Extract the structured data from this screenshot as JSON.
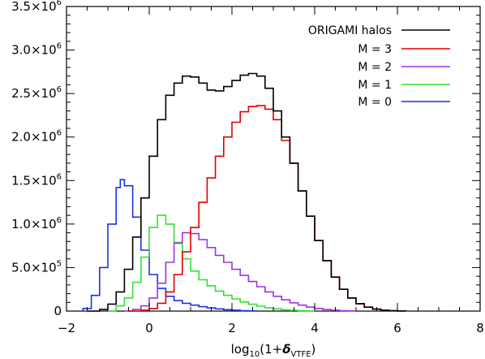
{
  "chart_data": {
    "type": "line",
    "step": true,
    "title": "",
    "xlabel": {
      "prefix": "log",
      "sub": "10",
      "open": "(1+",
      "symbol": "δ",
      "symbol_sub": "VTFE",
      "close": ")"
    },
    "ylabel": "",
    "xlim": [
      -2,
      8
    ],
    "ylim": [
      0,
      3500000
    ],
    "x_ticks": [
      {
        "value": -2,
        "label": "−2"
      },
      {
        "value": 0,
        "label": "0"
      },
      {
        "value": 2,
        "label": "2"
      },
      {
        "value": 4,
        "label": "4"
      },
      {
        "value": 6,
        "label": "6"
      },
      {
        "value": 8,
        "label": "8"
      }
    ],
    "y_ticks": [
      {
        "value": 0,
        "mantissa": "0",
        "exponent": ""
      },
      {
        "value": 500000,
        "mantissa": "5.0×10",
        "exponent": "5"
      },
      {
        "value": 1000000,
        "mantissa": "1.0×10",
        "exponent": "6"
      },
      {
        "value": 1500000,
        "mantissa": "1.5×10",
        "exponent": "6"
      },
      {
        "value": 2000000,
        "mantissa": "2.0×10",
        "exponent": "6"
      },
      {
        "value": 2500000,
        "mantissa": "2.5×10",
        "exponent": "6"
      },
      {
        "value": 3000000,
        "mantissa": "3.0×10",
        "exponent": "6"
      },
      {
        "value": 3500000,
        "mantissa": "3.5×10",
        "exponent": "6"
      }
    ],
    "legend_position": "top-right",
    "series": [
      {
        "name": "ORIGAMI halos",
        "color": "#000000",
        "points": [
          [
            -1.5,
            0
          ],
          [
            -1.2,
            20000
          ],
          [
            -1.0,
            80000
          ],
          [
            -0.8,
            220000
          ],
          [
            -0.6,
            480000
          ],
          [
            -0.4,
            850000
          ],
          [
            -0.2,
            1300000
          ],
          [
            0.0,
            1780000
          ],
          [
            0.2,
            2200000
          ],
          [
            0.4,
            2480000
          ],
          [
            0.6,
            2620000
          ],
          [
            0.8,
            2700000
          ],
          [
            1.0,
            2690000
          ],
          [
            1.2,
            2620000
          ],
          [
            1.4,
            2540000
          ],
          [
            1.6,
            2530000
          ],
          [
            1.8,
            2580000
          ],
          [
            2.0,
            2650000
          ],
          [
            2.2,
            2710000
          ],
          [
            2.4,
            2730000
          ],
          [
            2.6,
            2700000
          ],
          [
            2.8,
            2560000
          ],
          [
            3.0,
            2300000
          ],
          [
            3.2,
            2000000
          ],
          [
            3.4,
            1700000
          ],
          [
            3.6,
            1380000
          ],
          [
            3.8,
            1090000
          ],
          [
            4.0,
            810000
          ],
          [
            4.2,
            580000
          ],
          [
            4.4,
            390000
          ],
          [
            4.6,
            250000
          ],
          [
            4.8,
            150000
          ],
          [
            5.0,
            85000
          ],
          [
            5.2,
            45000
          ],
          [
            5.4,
            22000
          ],
          [
            5.6,
            10000
          ],
          [
            5.8,
            4000
          ],
          [
            6.0,
            1500
          ],
          [
            6.2,
            0
          ]
        ]
      },
      {
        "name": "M = 3",
        "color": "#e00000",
        "points": [
          [
            -0.5,
            0
          ],
          [
            -0.2,
            10000
          ],
          [
            0.0,
            30000
          ],
          [
            0.2,
            90000
          ],
          [
            0.4,
            220000
          ],
          [
            0.6,
            420000
          ],
          [
            0.8,
            680000
          ],
          [
            1.0,
            960000
          ],
          [
            1.2,
            1250000
          ],
          [
            1.4,
            1530000
          ],
          [
            1.6,
            1780000
          ],
          [
            1.8,
            2000000
          ],
          [
            2.0,
            2170000
          ],
          [
            2.2,
            2290000
          ],
          [
            2.4,
            2350000
          ],
          [
            2.6,
            2360000
          ],
          [
            2.7,
            2360000
          ],
          [
            2.8,
            2320000
          ],
          [
            3.0,
            2200000
          ],
          [
            3.2,
            1960000
          ],
          [
            3.4,
            1700000
          ],
          [
            3.6,
            1380000
          ],
          [
            3.8,
            1090000
          ],
          [
            4.0,
            810000
          ],
          [
            4.2,
            580000
          ],
          [
            4.4,
            390000
          ],
          [
            4.6,
            250000
          ],
          [
            4.8,
            150000
          ],
          [
            5.0,
            85000
          ],
          [
            5.2,
            45000
          ],
          [
            5.4,
            22000
          ],
          [
            5.6,
            10000
          ],
          [
            5.8,
            4000
          ],
          [
            6.0,
            1500
          ],
          [
            6.2,
            0
          ]
        ]
      },
      {
        "name": "M = 2",
        "color": "#a033e0",
        "points": [
          [
            -0.6,
            0
          ],
          [
            -0.4,
            20000
          ],
          [
            -0.2,
            60000
          ],
          [
            0.0,
            150000
          ],
          [
            0.2,
            320000
          ],
          [
            0.4,
            560000
          ],
          [
            0.6,
            780000
          ],
          [
            0.8,
            900000
          ],
          [
            1.0,
            890000
          ],
          [
            1.2,
            820000
          ],
          [
            1.4,
            730000
          ],
          [
            1.6,
            640000
          ],
          [
            1.8,
            560000
          ],
          [
            2.0,
            480000
          ],
          [
            2.2,
            410000
          ],
          [
            2.4,
            340000
          ],
          [
            2.6,
            280000
          ],
          [
            2.8,
            220000
          ],
          [
            3.0,
            170000
          ],
          [
            3.2,
            130000
          ],
          [
            3.4,
            95000
          ],
          [
            3.6,
            68000
          ],
          [
            3.8,
            46000
          ],
          [
            4.0,
            30000
          ],
          [
            4.2,
            18000
          ],
          [
            4.4,
            10000
          ],
          [
            4.6,
            5000
          ],
          [
            4.8,
            2000
          ],
          [
            5.0,
            0
          ]
        ]
      },
      {
        "name": "M = 1",
        "color": "#33e033",
        "points": [
          [
            -1.0,
            0
          ],
          [
            -0.8,
            60000
          ],
          [
            -0.6,
            150000
          ],
          [
            -0.4,
            330000
          ],
          [
            -0.2,
            620000
          ],
          [
            0.0,
            960000
          ],
          [
            0.2,
            1100000
          ],
          [
            0.4,
            1000000
          ],
          [
            0.6,
            790000
          ],
          [
            0.8,
            600000
          ],
          [
            1.0,
            460000
          ],
          [
            1.2,
            360000
          ],
          [
            1.4,
            290000
          ],
          [
            1.6,
            230000
          ],
          [
            1.8,
            180000
          ],
          [
            2.0,
            140000
          ],
          [
            2.2,
            105000
          ],
          [
            2.4,
            78000
          ],
          [
            2.6,
            56000
          ],
          [
            2.8,
            38000
          ],
          [
            3.0,
            25000
          ],
          [
            3.2,
            15000
          ],
          [
            3.4,
            8000
          ],
          [
            3.6,
            4000
          ],
          [
            3.8,
            1500
          ],
          [
            4.0,
            0
          ]
        ]
      },
      {
        "name": "M = 0",
        "color": "#1a33e0",
        "points": [
          [
            -1.7,
            0
          ],
          [
            -1.6,
            30000
          ],
          [
            -1.4,
            180000
          ],
          [
            -1.2,
            500000
          ],
          [
            -1.0,
            1000000
          ],
          [
            -0.8,
            1420000
          ],
          [
            -0.7,
            1510000
          ],
          [
            -0.6,
            1440000
          ],
          [
            -0.4,
            1080000
          ],
          [
            -0.2,
            700000
          ],
          [
            0.0,
            420000
          ],
          [
            0.2,
            260000
          ],
          [
            0.4,
            170000
          ],
          [
            0.6,
            120000
          ],
          [
            0.8,
            90000
          ],
          [
            1.0,
            68000
          ],
          [
            1.2,
            50000
          ],
          [
            1.4,
            36000
          ],
          [
            1.6,
            25000
          ],
          [
            1.8,
            16000
          ],
          [
            2.0,
            10000
          ],
          [
            2.2,
            5000
          ],
          [
            2.4,
            2000
          ],
          [
            2.6,
            0
          ]
        ]
      }
    ]
  }
}
